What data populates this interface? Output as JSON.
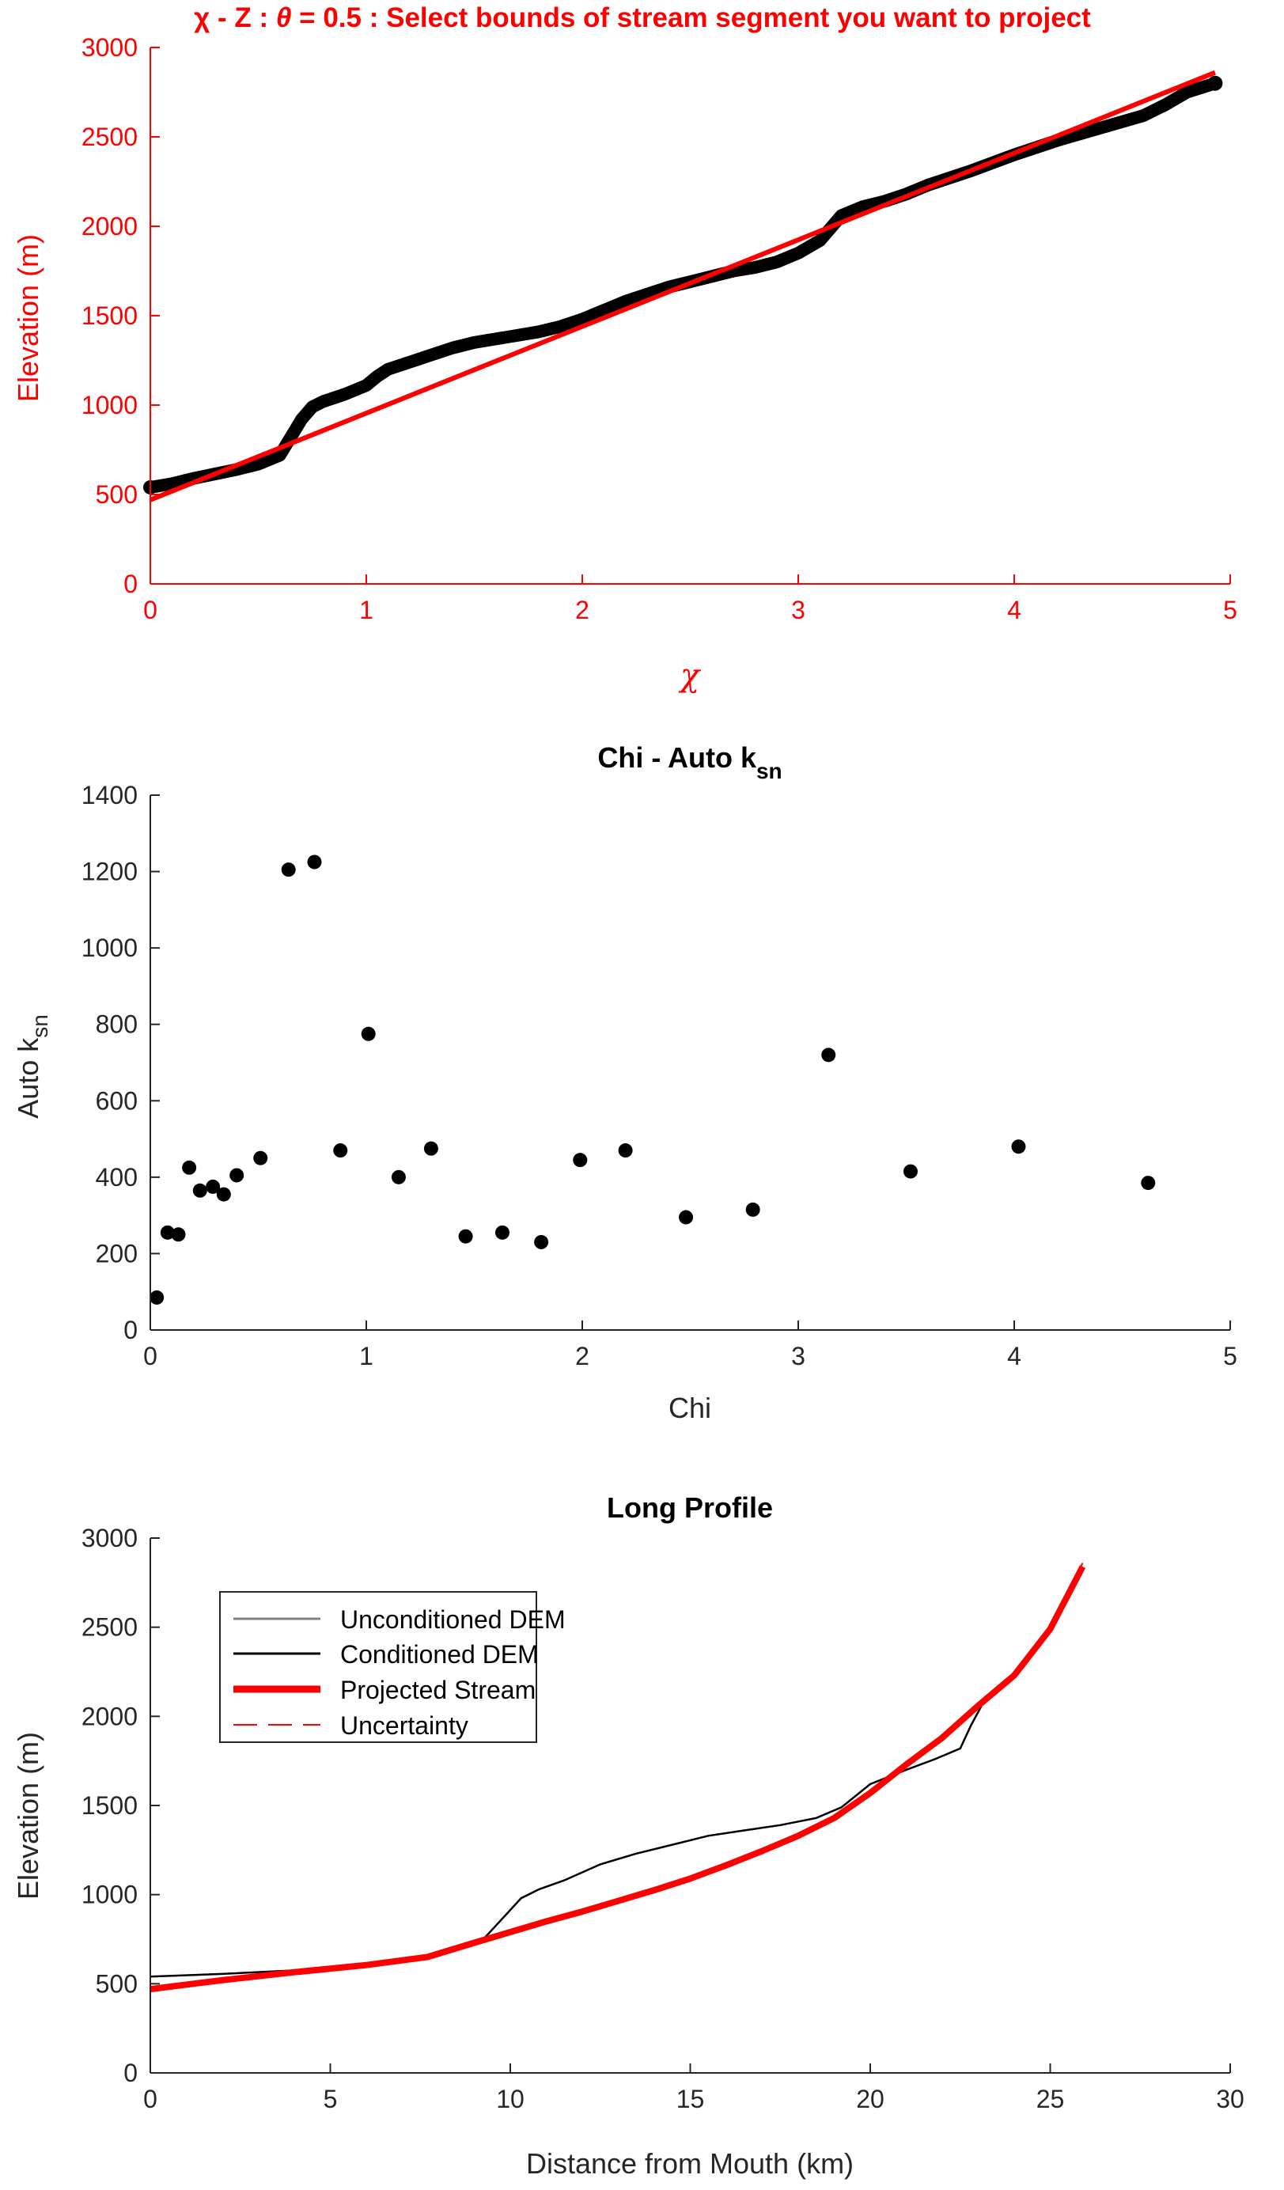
{
  "colors": {
    "accent": "#ff0000",
    "text": "#262626",
    "data": "#000000",
    "unconditioned": "#808080",
    "background": "#ffffff"
  },
  "panel1": {
    "title_chi": "χ",
    "title_rest": " - Z : ",
    "title_theta": "θ",
    "title_tail": " = 0.5 : Select bounds of stream segment you want to project",
    "xlabel": "χ",
    "ylabel": "Elevation (m)"
  },
  "panel2": {
    "title_main": "Chi - Auto k",
    "title_sub": "sn",
    "xlabel": "Chi",
    "ylabel_main": "Auto k",
    "ylabel_sub": "sn"
  },
  "panel3": {
    "title": "Long Profile",
    "xlabel": "Distance from Mouth (km)",
    "ylabel": "Elevation (m)",
    "legend": [
      {
        "label": "Unconditioned DEM",
        "style": "gray-thin"
      },
      {
        "label": "Conditioned DEM",
        "style": "black-thin"
      },
      {
        "label": "Projected Stream",
        "style": "red-thick"
      },
      {
        "label": "Uncertainty",
        "style": "red-dashed"
      }
    ]
  },
  "chart_data": [
    {
      "type": "line",
      "title": "χ - Z : θ = 0.5 : Select bounds of stream segment you want to project",
      "xlabel": "χ",
      "ylabel": "Elevation (m)",
      "xlim": [
        0,
        5
      ],
      "ylim": [
        0,
        3000
      ],
      "xticks": [
        0,
        1,
        2,
        3,
        4,
        5
      ],
      "yticks": [
        0,
        500,
        1000,
        1500,
        2000,
        2500,
        3000
      ],
      "grid": false,
      "series": [
        {
          "style": "black-markers",
          "x": [
            0,
            0.1,
            0.2,
            0.3,
            0.4,
            0.5,
            0.6,
            0.65,
            0.7,
            0.75,
            0.8,
            0.9,
            1.0,
            1.05,
            1.1,
            1.2,
            1.3,
            1.4,
            1.5,
            1.6,
            1.7,
            1.8,
            1.9,
            2.0,
            2.1,
            2.2,
            2.3,
            2.4,
            2.5,
            2.6,
            2.7,
            2.8,
            2.9,
            3.0,
            3.1,
            3.2,
            3.3,
            3.4,
            3.5,
            3.6,
            3.8,
            4.0,
            4.2,
            4.4,
            4.6,
            4.7,
            4.8,
            4.93
          ],
          "y": [
            540,
            560,
            590,
            615,
            640,
            670,
            720,
            820,
            920,
            990,
            1020,
            1060,
            1110,
            1160,
            1200,
            1240,
            1280,
            1320,
            1350,
            1370,
            1390,
            1410,
            1440,
            1480,
            1530,
            1580,
            1620,
            1660,
            1690,
            1720,
            1750,
            1770,
            1800,
            1850,
            1920,
            2060,
            2110,
            2140,
            2180,
            2230,
            2310,
            2400,
            2480,
            2550,
            2620,
            2680,
            2750,
            2800
          ]
        },
        {
          "style": "red-line",
          "x": [
            0,
            4.93
          ],
          "y": [
            470,
            2860
          ]
        }
      ]
    },
    {
      "type": "scatter",
      "title": "Chi - Auto ksn",
      "xlabel": "Chi",
      "ylabel": "Auto ksn",
      "xlim": [
        0,
        5
      ],
      "ylim": [
        0,
        1400
      ],
      "xticks": [
        0,
        1,
        2,
        3,
        4,
        5
      ],
      "yticks": [
        0,
        200,
        400,
        600,
        800,
        1000,
        1200,
        1400
      ],
      "grid": false,
      "x": [
        0.03,
        0.08,
        0.13,
        0.18,
        0.23,
        0.29,
        0.34,
        0.4,
        0.51,
        0.64,
        0.76,
        0.88,
        1.01,
        1.15,
        1.3,
        1.46,
        1.63,
        1.81,
        1.99,
        2.2,
        2.48,
        2.79,
        3.14,
        3.52,
        4.02,
        4.62
      ],
      "y": [
        85,
        255,
        250,
        425,
        365,
        375,
        355,
        405,
        450,
        1205,
        1225,
        470,
        775,
        400,
        475,
        245,
        255,
        230,
        445,
        470,
        295,
        315,
        720,
        415,
        480,
        385
      ]
    },
    {
      "type": "line",
      "title": "Long Profile",
      "xlabel": "Distance from Mouth (km)",
      "ylabel": "Elevation (m)",
      "xlim": [
        0,
        30
      ],
      "ylim": [
        0,
        3000
      ],
      "xticks": [
        0,
        5,
        10,
        15,
        20,
        25,
        30
      ],
      "yticks": [
        0,
        500,
        1000,
        1500,
        2000,
        2500,
        3000
      ],
      "grid": false,
      "legend_position": "upper-left",
      "series": [
        {
          "name": "Unconditioned DEM",
          "style": "gray-thin",
          "x": [
            0,
            2,
            4,
            6,
            7.7,
            9.3,
            9.8,
            10.3,
            10.8,
            11.5,
            12.5,
            13.5,
            14.5,
            15.5,
            16.5,
            17.5,
            18.5,
            19.2,
            20.0,
            21.0,
            21.8,
            22.5,
            22.8,
            23.2,
            24,
            25,
            25.9
          ],
          "y": [
            540,
            555,
            575,
            600,
            650,
            760,
            870,
            980,
            1030,
            1080,
            1170,
            1230,
            1280,
            1330,
            1360,
            1390,
            1430,
            1490,
            1620,
            1700,
            1760,
            1820,
            1950,
            2100,
            2230,
            2500,
            2830
          ]
        },
        {
          "name": "Conditioned DEM",
          "style": "black-thin",
          "x": [
            0,
            2,
            4,
            6,
            7.7,
            9.3,
            9.8,
            10.3,
            10.8,
            11.5,
            12.5,
            13.5,
            14.5,
            15.5,
            16.5,
            17.5,
            18.5,
            19.2,
            20.0,
            21.0,
            21.8,
            22.5,
            22.8,
            23.2,
            24,
            25,
            25.9
          ],
          "y": [
            540,
            555,
            575,
            600,
            650,
            760,
            870,
            980,
            1030,
            1080,
            1170,
            1230,
            1280,
            1330,
            1360,
            1390,
            1430,
            1490,
            1620,
            1700,
            1760,
            1820,
            1950,
            2100,
            2230,
            2500,
            2830
          ]
        },
        {
          "name": "Projected Stream",
          "style": "red-thick",
          "x": [
            0,
            2,
            4,
            6,
            7.7,
            9,
            10,
            11,
            12,
            13,
            14,
            15,
            16,
            17,
            18,
            19,
            20,
            21,
            22,
            23,
            24,
            25,
            25.9
          ],
          "y": [
            470,
            520,
            565,
            605,
            650,
            730,
            790,
            850,
            905,
            965,
            1025,
            1090,
            1165,
            1245,
            1330,
            1430,
            1570,
            1730,
            1880,
            2060,
            2230,
            2490,
            2840
          ]
        },
        {
          "name": "Uncertainty",
          "style": "red-dashed",
          "x": [
            0,
            2,
            4,
            6,
            7.7,
            9,
            10,
            11,
            12,
            13,
            14,
            15,
            16,
            17,
            18,
            19,
            20,
            21,
            22,
            23,
            24,
            25,
            25.9
          ],
          "y": [
            475,
            525,
            570,
            610,
            655,
            735,
            795,
            855,
            910,
            970,
            1030,
            1095,
            1170,
            1250,
            1335,
            1435,
            1575,
            1735,
            1885,
            2065,
            2235,
            2495,
            2860
          ]
        }
      ]
    }
  ]
}
